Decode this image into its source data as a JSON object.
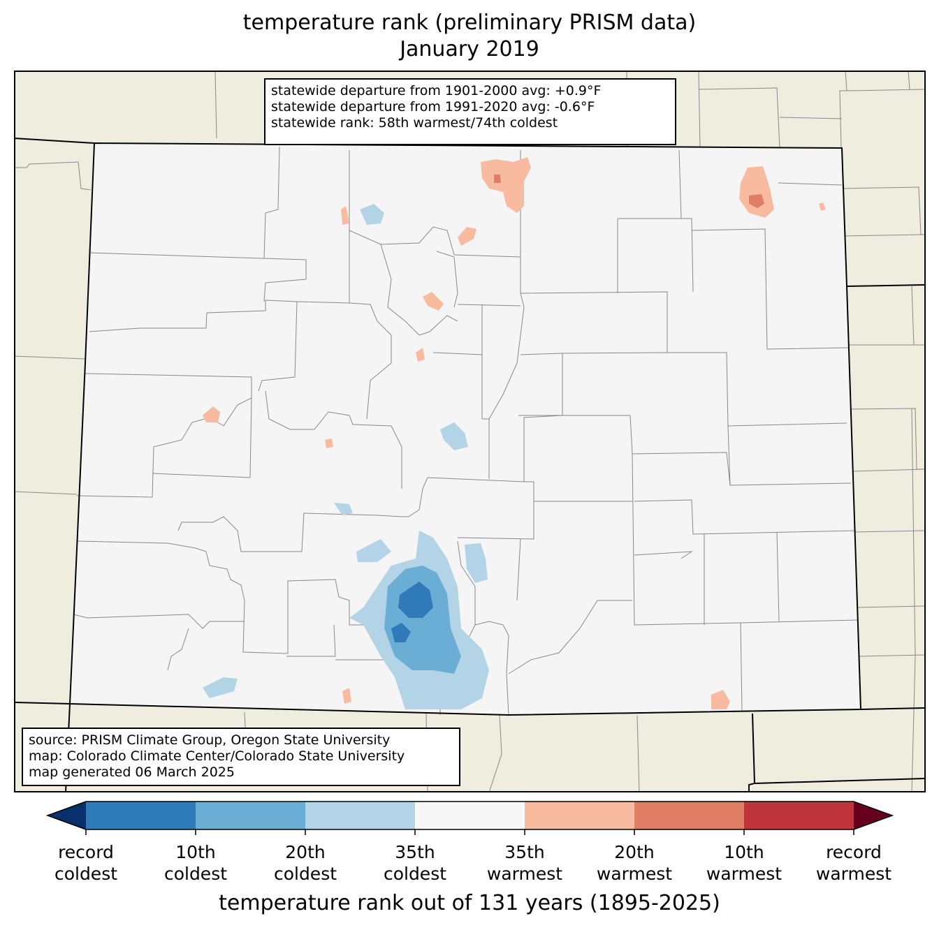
{
  "title": {
    "line1": "temperature rank (preliminary PRISM data)",
    "line2": "January 2019"
  },
  "stats_box": {
    "line1": "statewide departure from 1901-2000 avg: +0.9°F",
    "line2": "statewide departure from 1991-2020 avg: -0.6°F",
    "line3": "statewide rank: 58th warmest/74th coldest"
  },
  "source_box": {
    "line1": "source: PRISM Climate Group, Oregon State University",
    "line2": "map: Colorado Climate Center/Colorado State University",
    "line3": "map generated 06 March 2025"
  },
  "colorbar": {
    "title": "temperature rank out of 131 years (1895-2025)",
    "colors": [
      "#08306b",
      "#2f7ab9",
      "#6aaed6",
      "#b3d4e7",
      "#f7f7f7",
      "#f8bba0",
      "#e07e66",
      "#c0353b",
      "#67001f"
    ],
    "labels": [
      {
        "l1": "record",
        "l2": "coldest"
      },
      {
        "l1": "10th",
        "l2": "coldest"
      },
      {
        "l1": "20th",
        "l2": "coldest"
      },
      {
        "l1": "35th",
        "l2": "coldest"
      },
      {
        "l1": "35th",
        "l2": "warmest"
      },
      {
        "l1": "20th",
        "l2": "warmest"
      },
      {
        "l1": "10th",
        "l2": "warmest"
      },
      {
        "l1": "record",
        "l2": "warmest"
      }
    ]
  },
  "map": {
    "background_color": "#efedde",
    "state_fill": "#f5f5f5"
  }
}
